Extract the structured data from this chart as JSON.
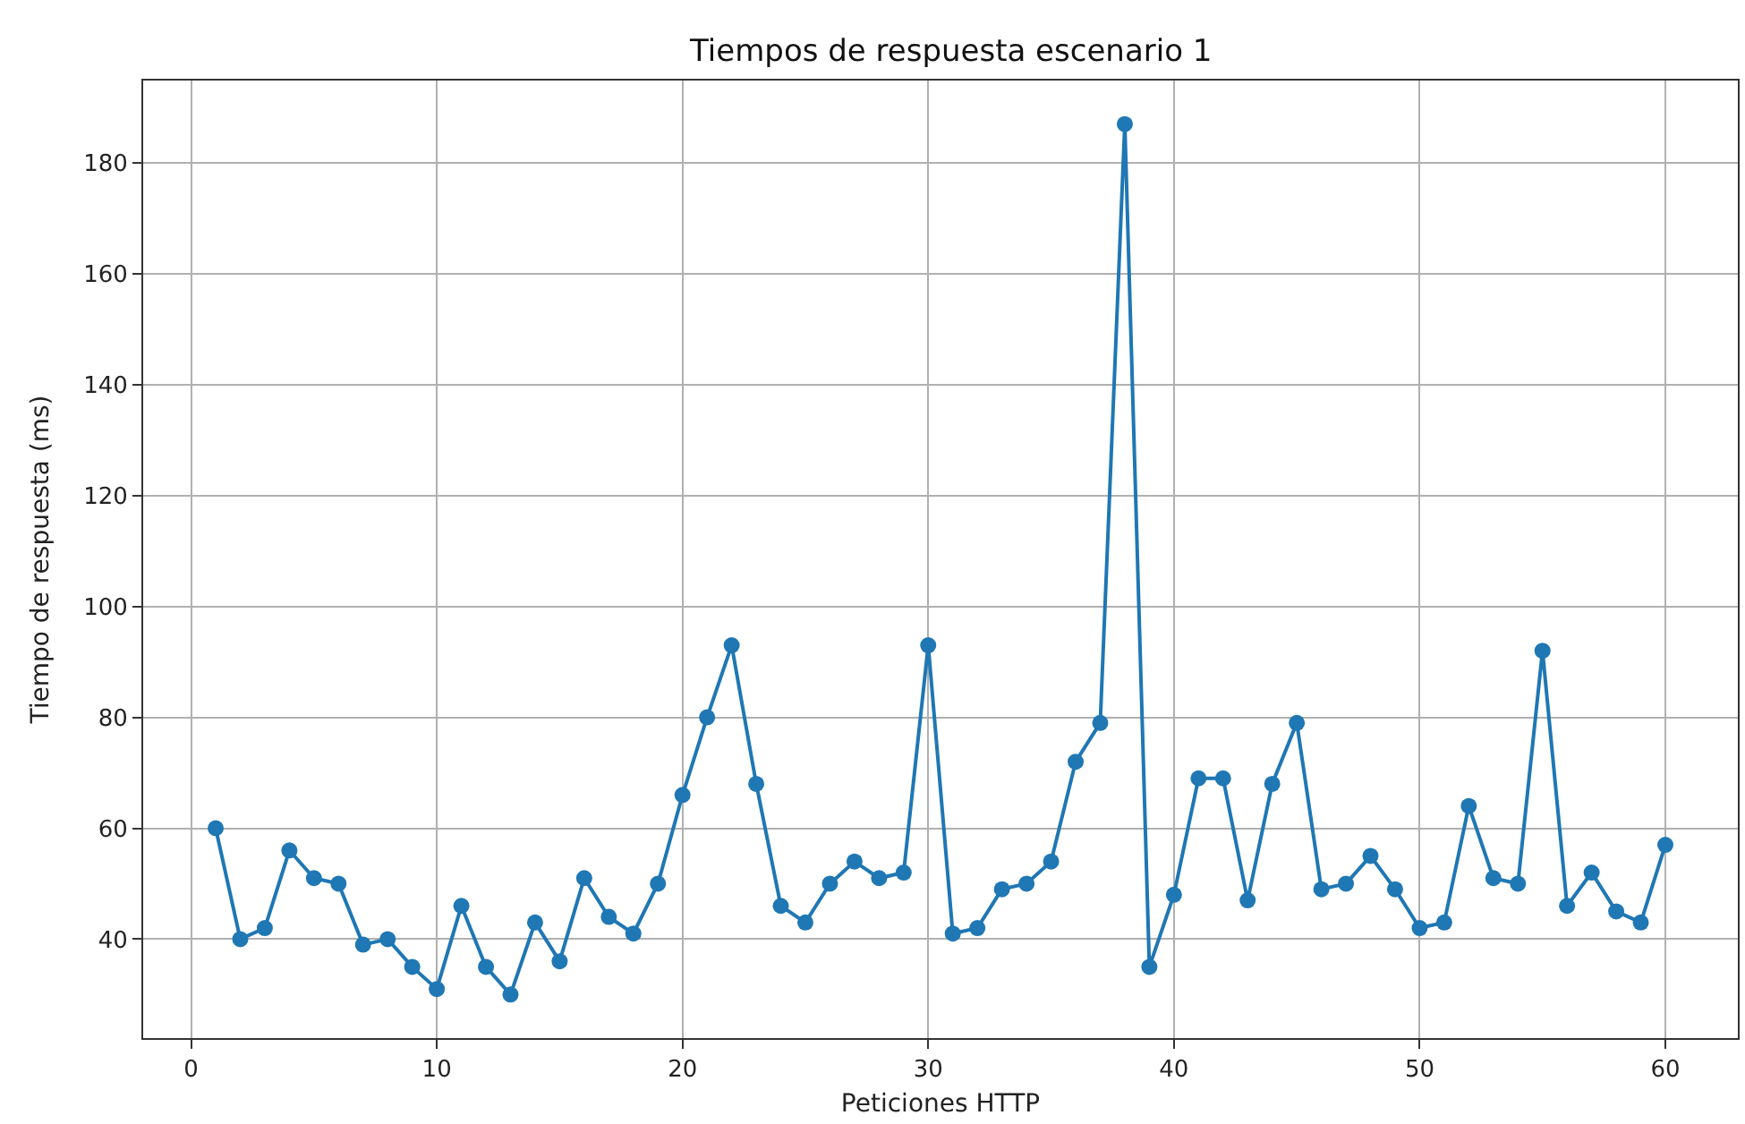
{
  "chart_data": {
    "type": "line",
    "title": "Tiempos de respuesta escenario 1",
    "xlabel": "Peticiones HTTP",
    "ylabel": "Tiempo de respuesta (ms)",
    "x": [
      1,
      2,
      3,
      4,
      5,
      6,
      7,
      8,
      9,
      10,
      11,
      12,
      13,
      14,
      15,
      16,
      17,
      18,
      19,
      20,
      21,
      22,
      23,
      24,
      25,
      26,
      27,
      28,
      29,
      30,
      31,
      32,
      33,
      34,
      35,
      36,
      37,
      38,
      39,
      40,
      41,
      42,
      43,
      44,
      45,
      46,
      47,
      48,
      49,
      50,
      51,
      52,
      53,
      54,
      55,
      56,
      57,
      58,
      59,
      60
    ],
    "series": [
      {
        "color": "#1f77b4",
        "values": [
          60,
          40,
          42,
          56,
          51,
          50,
          39,
          40,
          35,
          31,
          46,
          35,
          30,
          43,
          36,
          51,
          44,
          41,
          50,
          66,
          80,
          93,
          68,
          46,
          43,
          50,
          54,
          51,
          52,
          93,
          41,
          42,
          49,
          50,
          54,
          72,
          79,
          187,
          35,
          48,
          69,
          69,
          47,
          68,
          79,
          49,
          50,
          55,
          49,
          42,
          43,
          64,
          51,
          50,
          92,
          46,
          52,
          45,
          43,
          57
        ]
      }
    ],
    "xlim": [
      -1.95,
      62.95
    ],
    "xticks": [
      0,
      10,
      20,
      30,
      40,
      50,
      60
    ],
    "ylim": [
      22.15,
      194.85
    ],
    "yticks": [
      40,
      60,
      80,
      100,
      120,
      140,
      160,
      180
    ],
    "grid": true,
    "marker": "circle",
    "line_style": "solid"
  }
}
